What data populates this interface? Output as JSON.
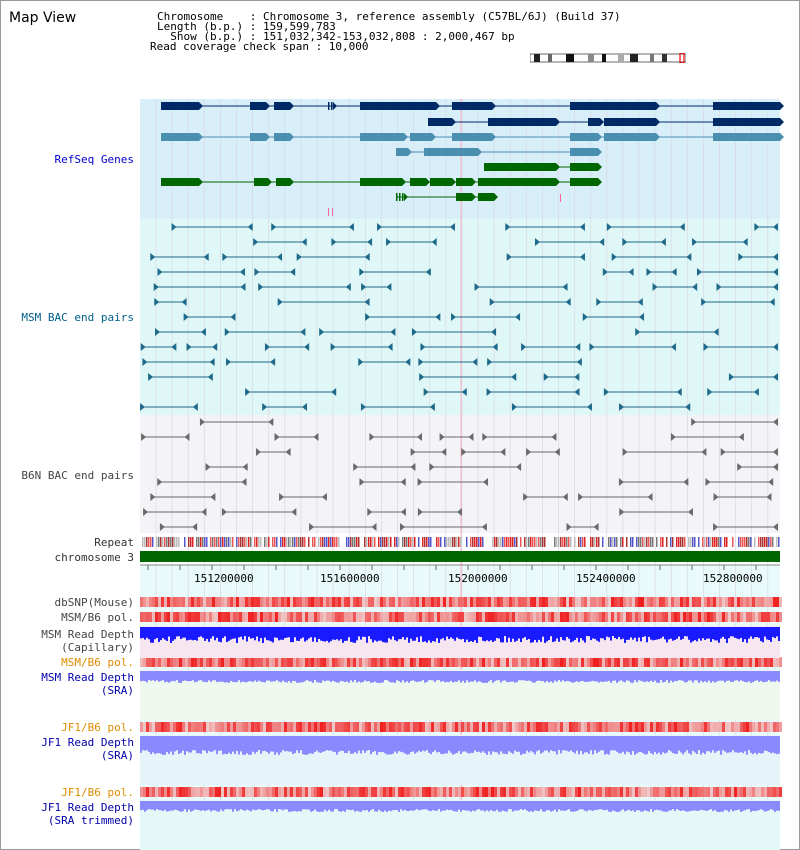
{
  "app": {
    "title": "Map View"
  },
  "header": {
    "lines": [
      "Chromosome    : Chromosome 3, reference assembly (C57BL/6J) (Build 37)",
      "Length (b.p.) : 159,599,783",
      "  Show (b.p.) : 151,032,342-153,032,808 : 2,000,467 bp",
      "Read coverage check span : 10,000"
    ]
  },
  "tracks": {
    "refseq": {
      "label": "RefSeq Genes"
    },
    "msm_bac": {
      "label": "MSM BAC end pairs"
    },
    "b6n_bac": {
      "label": "B6N BAC end pairs"
    },
    "repeat": {
      "label": "Repeat"
    },
    "chromosome": {
      "label": "chromosome 3"
    },
    "dbsnp": {
      "label": "dbSNP(Mouse)"
    },
    "msm_b6_pol": {
      "label": "MSM/B6 pol."
    },
    "msm_read_depth_cap": {
      "label_line1": "MSM Read Depth",
      "label_line2": "(Capillary)"
    },
    "msm_b6_pol_sra": {
      "label": "MSM/B6 pol."
    },
    "msm_read_depth_sra": {
      "label_line1": "MSM Read Depth",
      "label_line2": "(SRA)"
    },
    "jf1_b6_pol": {
      "label": "JF1/B6 pol."
    },
    "jf1_read_depth_sra": {
      "label_line1": "JF1 Read Depth",
      "label_line2": "(SRA)"
    },
    "jf1_b6_pol_trim": {
      "label": "JF1/B6 pol."
    },
    "jf1_read_depth_trim": {
      "label_line1": "JF1 Read Depth",
      "label_line2": "(SRA trimmed)"
    }
  },
  "axis": {
    "ticks": [
      "151200000",
      "151600000",
      "152000000",
      "152400000",
      "152800000"
    ]
  },
  "colors": {
    "refseq_bg": "#d8eef8",
    "msm_bg": "#e0f7f7",
    "b6n_bg": "#f3f3f8",
    "navy_gene": "#002a66",
    "blue_gene": "#4a8fb0",
    "green_gene": "#006600",
    "teal_line": "#1f6a8a",
    "gray_line": "#6a6a6a",
    "chromosome_bar": "#006600",
    "snp_red": "#ee4444",
    "depth_blue": "#1a1aff",
    "depth_light": "#8a8aff"
  }
}
